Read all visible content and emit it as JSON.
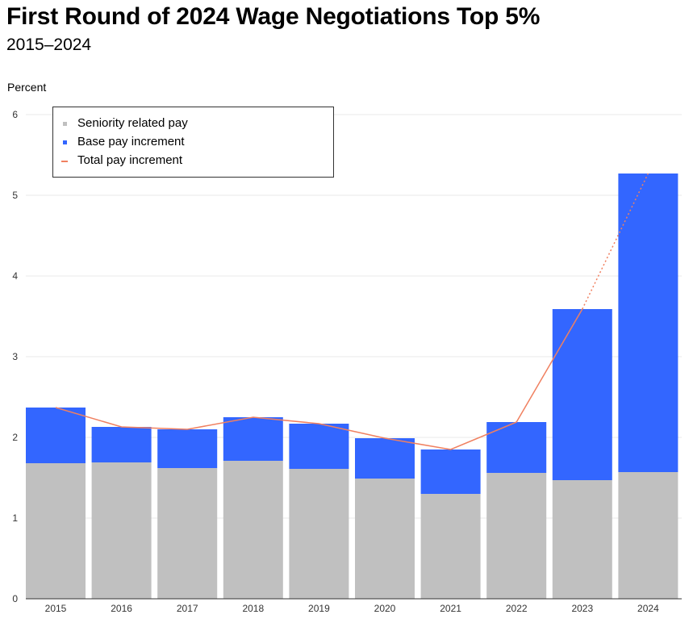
{
  "title": "First Round of 2024 Wage Negotiations Top 5%",
  "subtitle": "2015–2024",
  "chart_data": {
    "type": "bar",
    "stacked": true,
    "title": "First Round of 2024 Wage Negotiations Top 5%",
    "subtitle": "2015–2024",
    "ylabel": "Percent",
    "xlabel": "",
    "ylim": [
      0,
      6
    ],
    "yticks": [
      "0",
      "1",
      "2",
      "3",
      "4",
      "5",
      "6"
    ],
    "grid": true,
    "legend_position": "top-left",
    "categories": [
      "2015",
      "2016",
      "2017",
      "2018",
      "2019",
      "2020",
      "2021",
      "2022",
      "2023",
      "2024"
    ],
    "series": [
      {
        "name": "Seniority related pay",
        "type": "bar",
        "color": "#c0c0c0",
        "values": [
          1.68,
          1.69,
          1.62,
          1.71,
          1.61,
          1.49,
          1.3,
          1.56,
          1.47,
          1.57
        ]
      },
      {
        "name": "Base pay increment",
        "type": "bar",
        "color": "#3366ff",
        "values": [
          0.69,
          0.44,
          0.48,
          0.54,
          0.56,
          0.5,
          0.55,
          0.63,
          2.12,
          3.7
        ]
      },
      {
        "name": "Total pay increment",
        "type": "line",
        "color": "#f08060",
        "values": [
          2.37,
          2.13,
          2.1,
          2.25,
          2.17,
          1.99,
          1.85,
          2.19,
          3.59,
          5.27
        ],
        "dotted_last_segment": true
      }
    ]
  }
}
